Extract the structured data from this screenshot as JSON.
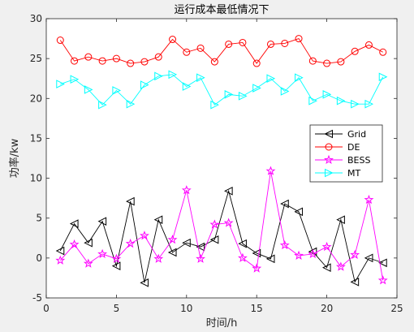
{
  "chart_data": {
    "type": "line",
    "title": "运行成本最低情况下",
    "xlabel": "时间/h",
    "ylabel": "功率/kw",
    "xlim": [
      0,
      25
    ],
    "ylim": [
      -5,
      30
    ],
    "xticks": [
      0,
      5,
      10,
      15,
      20,
      25
    ],
    "yticks": [
      -5,
      0,
      5,
      10,
      15,
      20,
      25,
      30
    ],
    "grid": false,
    "legend_position": "center-right",
    "x": [
      1,
      2,
      3,
      4,
      5,
      6,
      7,
      8,
      9,
      10,
      11,
      12,
      13,
      14,
      15,
      16,
      17,
      18,
      19,
      20,
      21,
      22,
      23,
      24
    ],
    "series": [
      {
        "name": "Grid",
        "color": "#000000",
        "marker": "triangle-left",
        "values": [
          0.9,
          4.3,
          1.9,
          4.6,
          -1.0,
          7.1,
          -3.1,
          4.8,
          0.7,
          1.9,
          1.4,
          2.3,
          8.4,
          1.8,
          0.6,
          -0.1,
          6.8,
          5.8,
          0.8,
          -1.2,
          4.8,
          -3.0,
          0.0,
          -0.6
        ]
      },
      {
        "name": "DE",
        "color": "#ff0000",
        "marker": "circle",
        "values": [
          27.3,
          24.7,
          25.2,
          24.7,
          25.0,
          24.4,
          24.6,
          25.2,
          27.4,
          25.8,
          26.3,
          24.6,
          26.8,
          27.0,
          24.4,
          26.8,
          26.9,
          27.5,
          24.7,
          24.4,
          24.6,
          25.9,
          26.7,
          25.8
        ]
      },
      {
        "name": "BESS",
        "color": "#ff00ff",
        "marker": "star",
        "values": [
          -0.3,
          1.7,
          -0.7,
          0.5,
          -0.1,
          1.8,
          2.8,
          -0.1,
          2.3,
          8.5,
          -0.1,
          4.2,
          4.4,
          0.0,
          -1.3,
          10.9,
          1.6,
          0.3,
          0.5,
          1.4,
          -1.1,
          0.4,
          7.3,
          -2.8
        ]
      },
      {
        "name": "MT",
        "color": "#00ffff",
        "marker": "triangle-right",
        "values": [
          21.8,
          22.4,
          21.1,
          19.2,
          21.0,
          19.3,
          21.7,
          22.8,
          23.0,
          21.5,
          22.6,
          19.2,
          20.5,
          20.3,
          21.3,
          22.5,
          20.9,
          22.6,
          19.7,
          20.5,
          19.7,
          19.3,
          19.3,
          22.7
        ]
      }
    ]
  }
}
